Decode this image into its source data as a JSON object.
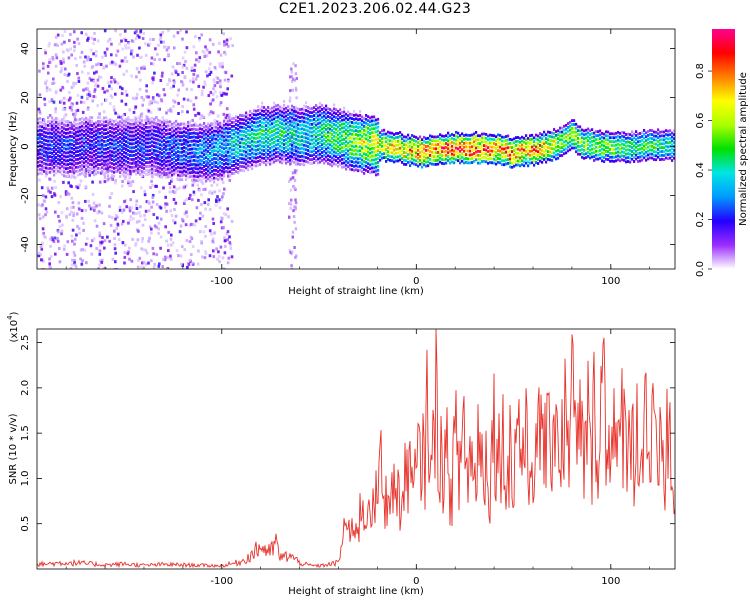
{
  "title": "C2E1.2023.206.02.44.G23",
  "chart_data": [
    {
      "type": "heatmap",
      "xlabel": "Height of straight line (km)",
      "ylabel": "Frequency (Hz)",
      "xlim": [
        -195,
        133
      ],
      "ylim": [
        -50,
        48
      ],
      "xticks": [
        -100,
        0,
        100
      ],
      "yticks": [
        -40,
        -20,
        0,
        20,
        40
      ],
      "colorbar": {
        "label": "Normalized spectral amplitude",
        "range": [
          0.0,
          0.97
        ],
        "ticks": [
          0.0,
          0.2,
          0.4,
          0.6,
          0.8
        ],
        "colormap": [
          "#ffffff",
          "#c9a6ff",
          "#7a00e6",
          "#2200ff",
          "#0088ff",
          "#00e5e5",
          "#00e000",
          "#aaff00",
          "#ffff00",
          "#ff8000",
          "#ff0000",
          "#ff0090"
        ]
      },
      "ridge": {
        "x": [
          -195,
          -180,
          -165,
          -150,
          -135,
          -120,
          -105,
          -90,
          -80,
          -70,
          -60,
          -50,
          -40,
          -30,
          -20,
          -10,
          0,
          10,
          20,
          30,
          40,
          50,
          60,
          70,
          75,
          80,
          85,
          90,
          100,
          110,
          120,
          133
        ],
        "freq": [
          1,
          0,
          1,
          0,
          0,
          -1,
          -2,
          2,
          5,
          6,
          5,
          6,
          4,
          2,
          1,
          0,
          -2,
          -1,
          0,
          0,
          -1,
          -2,
          -1,
          1,
          3,
          5,
          2,
          1,
          0,
          0,
          1,
          1
        ],
        "amplitude": [
          0.3,
          0.3,
          0.3,
          0.3,
          0.3,
          0.35,
          0.4,
          0.45,
          0.5,
          0.5,
          0.45,
          0.5,
          0.55,
          0.65,
          0.7,
          0.75,
          0.8,
          0.85,
          0.9,
          0.9,
          0.85,
          0.85,
          0.8,
          0.7,
          0.6,
          0.7,
          0.65,
          0.6,
          0.6,
          0.55,
          0.55,
          0.5
        ]
      }
    },
    {
      "type": "line",
      "xlabel": "Height of straight line (km)",
      "ylabel": "SNR (10 * v/v)",
      "y_multiplier": "(x10",
      "y_multiplier_exp": "4",
      "y_multiplier_close": ")",
      "xlim": [
        -195,
        133
      ],
      "ylim": [
        0,
        26500
      ],
      "xticks": [
        -100,
        0,
        100
      ],
      "yticks": [
        5000,
        10000,
        15000,
        20000,
        25000
      ],
      "ytick_labels": [
        "0.5",
        "1.0",
        "1.5",
        "2.0",
        "2.5"
      ],
      "series": [
        {
          "color": "#e8312a",
          "x": [
            -195,
            -180,
            -170,
            -160,
            -150,
            -140,
            -130,
            -120,
            -110,
            -100,
            -90,
            -85,
            -80,
            -75,
            -72,
            -70,
            -65,
            -60,
            -55,
            -50,
            -45,
            -40,
            -38,
            -36,
            -34,
            -32,
            -30,
            -28,
            -26,
            -24,
            -22,
            -20,
            -18,
            -16,
            -14,
            -12,
            -10,
            -8,
            -6,
            -4,
            -2,
            0,
            2,
            4,
            6,
            8,
            10,
            12,
            14,
            16,
            18,
            20,
            22,
            24,
            26,
            28,
            30,
            32,
            34,
            36,
            38,
            40,
            42,
            44,
            46,
            48,
            50,
            52,
            54,
            56,
            58,
            60,
            62,
            64,
            66,
            68,
            70,
            72,
            74,
            76,
            78,
            80,
            82,
            84,
            86,
            88,
            90,
            92,
            94,
            96,
            98,
            100,
            102,
            104,
            106,
            108,
            110,
            112,
            114,
            116,
            118,
            120,
            122,
            124,
            126,
            128,
            130,
            132
          ],
          "y": [
            500,
            700,
            600,
            450,
            550,
            400,
            500,
            450,
            400,
            350,
            800,
            1500,
            2500,
            1800,
            3000,
            1200,
            1500,
            700,
            400,
            350,
            500,
            700,
            3500,
            6500,
            3000,
            7000,
            4000,
            9000,
            5000,
            11000,
            6000,
            10000,
            12000,
            7000,
            13000,
            8000,
            11500,
            6500,
            10000,
            14000,
            9000,
            11000,
            15000,
            12000,
            22000,
            10000,
            23000,
            15000,
            12000,
            13500,
            9000,
            16000,
            11000,
            19000,
            12000,
            14000,
            10000,
            18000,
            12000,
            14500,
            10000,
            19000,
            13000,
            17000,
            11000,
            15500,
            10000,
            20000,
            14000,
            16000,
            11000,
            15000,
            12000,
            19000,
            16000,
            14000,
            18000,
            20000,
            13000,
            19000,
            15000,
            23000,
            14000,
            17500,
            13000,
            19000,
            12000,
            22000,
            14000,
            26000,
            13000,
            21000,
            16000,
            12000,
            20000,
            14000,
            23000,
            11000,
            19000,
            13000,
            21500,
            12000,
            18000,
            9000,
            16000,
            11000,
            20000,
            7500
          ]
        }
      ]
    }
  ]
}
